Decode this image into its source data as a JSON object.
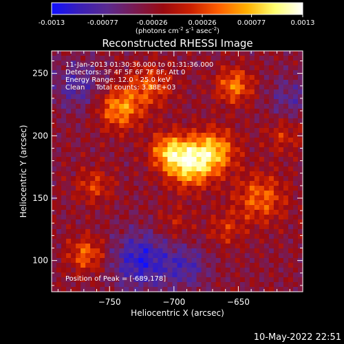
{
  "chart_data": {
    "type": "heatmap",
    "title": "Reconstructed RHESSI Image",
    "xlabel": "Heliocentric X (arcsec)",
    "ylabel": "Heliocentric Y (arcsec)",
    "xlim": [
      -795,
      -600
    ],
    "ylim": [
      75,
      268
    ],
    "xticks": [
      -750,
      -700,
      -650
    ],
    "yticks": [
      100,
      150,
      200,
      250
    ],
    "colorbar": {
      "ticks": [
        "-0.0013",
        "-0.00077",
        "-0.00026",
        "0.00026",
        "0.00077",
        "0.0013"
      ],
      "range": [
        -0.0013,
        0.0013
      ],
      "unit_text": "(photons cm",
      "unit_sup1": "-2",
      "unit_mid": " s",
      "unit_sup2": "-1",
      "unit_end": " asec",
      "unit_sup3": "-2",
      "unit_close": ")",
      "colors": [
        "#1010ff",
        "#3a1fb8",
        "#5a2a90",
        "#7a1a50",
        "#9a0a10",
        "#cc2000",
        "#ff6000",
        "#ffb000",
        "#ffff70",
        "#ffffff"
      ]
    },
    "info_lines": [
      "11-Jan-2013 01:30:36.000 to 01:31:36.000",
      "Detectors: 3F 4F 5F 6F 7F 8F, Att 0",
      "Energy Range: 12.0 - 25.0 keV",
      "Clean     Total counts: 3.38E+03"
    ],
    "peak_text": "Position of Peak = [-689,178]",
    "peak": [
      -689,
      178
    ],
    "sources": [
      {
        "x": -688,
        "y": 178,
        "amp": 0.0013,
        "sigma": 13
      },
      {
        "x": -668,
        "y": 188,
        "amp": 0.0009,
        "sigma": 12
      },
      {
        "x": -705,
        "y": 188,
        "amp": 0.0008,
        "sigma": 10
      },
      {
        "x": -742,
        "y": 222,
        "amp": 0.0009,
        "sigma": 12
      },
      {
        "x": -718,
        "y": 240,
        "amp": 0.0006,
        "sigma": 12
      },
      {
        "x": -762,
        "y": 160,
        "amp": 0.0005,
        "sigma": 10
      },
      {
        "x": -633,
        "y": 150,
        "amp": 0.0007,
        "sigma": 14
      },
      {
        "x": -653,
        "y": 240,
        "amp": 0.0008,
        "sigma": 10
      },
      {
        "x": -768,
        "y": 105,
        "amp": 0.0007,
        "sigma": 10
      },
      {
        "x": -660,
        "y": 125,
        "amp": 0.0004,
        "sigma": 10
      },
      {
        "x": -615,
        "y": 200,
        "amp": 0.0004,
        "sigma": 10
      },
      {
        "x": -700,
        "y": 130,
        "amp": 0.0003,
        "sigma": 10
      }
    ],
    "negative_regions": [
      {
        "x": -725,
        "y": 100,
        "amp": -0.0008,
        "sigma": 16
      },
      {
        "x": -690,
        "y": 95,
        "amp": -0.0005,
        "sigma": 12
      },
      {
        "x": -775,
        "y": 240,
        "amp": -0.0005,
        "sigma": 14
      },
      {
        "x": -610,
        "y": 230,
        "amp": -0.0004,
        "sigma": 12
      }
    ]
  },
  "footer": {
    "date": "10-May-2022 22:51"
  }
}
